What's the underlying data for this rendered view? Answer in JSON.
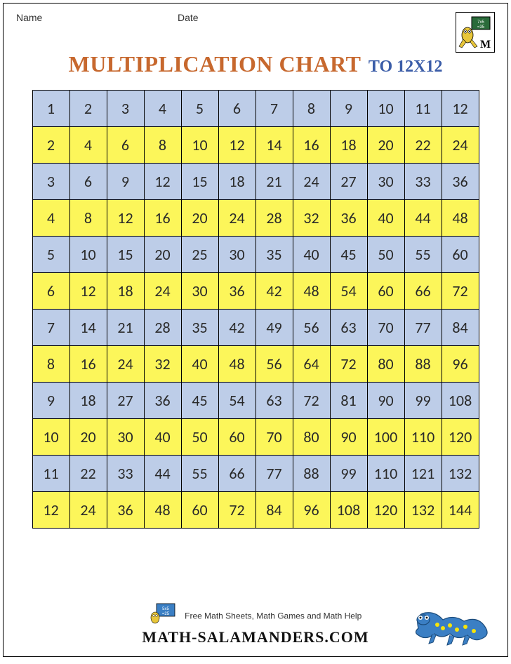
{
  "header": {
    "name_label": "Name",
    "date_label": "Date"
  },
  "title": {
    "main": "MULTIPLICATION CHART",
    "suffix": "TO 12X12",
    "main_color": "#c7682e",
    "suffix_color": "#3b5da8"
  },
  "chart": {
    "type": "table",
    "size": 12,
    "row_color_blue": "#bdcde8",
    "row_color_yellow": "#fcf65a",
    "border_color": "#000000",
    "cell_font_size": 22,
    "rows": [
      [
        1,
        2,
        3,
        4,
        5,
        6,
        7,
        8,
        9,
        10,
        11,
        12
      ],
      [
        2,
        4,
        6,
        8,
        10,
        12,
        14,
        16,
        18,
        20,
        22,
        24
      ],
      [
        3,
        6,
        9,
        12,
        15,
        18,
        21,
        24,
        27,
        30,
        33,
        36
      ],
      [
        4,
        8,
        12,
        16,
        20,
        24,
        28,
        32,
        36,
        40,
        44,
        48
      ],
      [
        5,
        10,
        15,
        20,
        25,
        30,
        35,
        40,
        45,
        50,
        55,
        60
      ],
      [
        6,
        12,
        18,
        24,
        30,
        36,
        42,
        48,
        54,
        60,
        66,
        72
      ],
      [
        7,
        14,
        21,
        28,
        35,
        42,
        49,
        56,
        63,
        70,
        77,
        84
      ],
      [
        8,
        16,
        24,
        32,
        40,
        48,
        56,
        64,
        72,
        80,
        88,
        96
      ],
      [
        9,
        18,
        27,
        36,
        45,
        54,
        63,
        72,
        81,
        90,
        99,
        108
      ],
      [
        10,
        20,
        30,
        40,
        50,
        60,
        70,
        80,
        90,
        100,
        110,
        120
      ],
      [
        11,
        22,
        33,
        44,
        55,
        66,
        77,
        88,
        99,
        110,
        121,
        132
      ],
      [
        12,
        24,
        36,
        48,
        60,
        72,
        84,
        96,
        108,
        120,
        132,
        144
      ]
    ]
  },
  "footer": {
    "tagline": "Free Math Sheets, Math Games and Math Help",
    "url": "MATH-SALAMANDERS.COM"
  },
  "salamander_color": "#3b7fc4",
  "salamander_spot_color": "#f6e40a"
}
